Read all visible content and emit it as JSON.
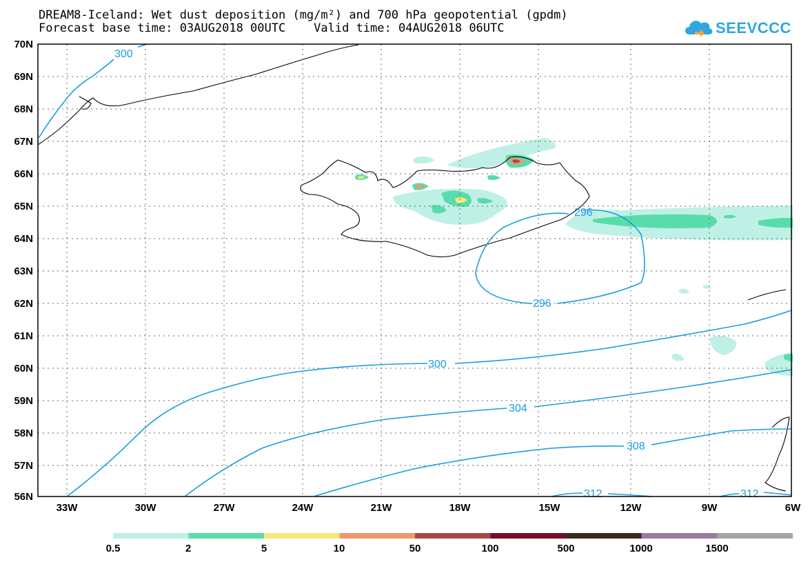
{
  "header": {
    "title_line1": "DREAM8-Iceland: Wet dust deposition (mg/m²) and 700 hPa geopotential (gpdm)",
    "title_line2": "Forecast base time: 03AUG2018 00UTC    Valid time: 04AUG2018 06UTC"
  },
  "logo": {
    "text": "SEEVCCC"
  },
  "map": {
    "lat_labels": [
      "70N",
      "69N",
      "68N",
      "67N",
      "66N",
      "65N",
      "64N",
      "63N",
      "62N",
      "61N",
      "60N",
      "59N",
      "58N",
      "57N",
      "56N"
    ],
    "lon_labels": [
      "33W",
      "30W",
      "27W",
      "24W",
      "21W",
      "18W",
      "15W",
      "12W",
      "9W",
      "6W"
    ],
    "contour_labels": [
      "300",
      "300",
      "304",
      "308",
      "296",
      "296",
      "312",
      "312"
    ]
  },
  "legend": {
    "colors": [
      "#bff0e6",
      "#58dcaa",
      "#f7e87a",
      "#f0966e",
      "#a5484a",
      "#7a0a2a",
      "#3a2a1a",
      "#9a7aa0",
      "#a6a6a6"
    ],
    "labels": [
      "0.5",
      "2",
      "5",
      "10",
      "50",
      "100",
      "500",
      "1000",
      "1500"
    ]
  }
}
